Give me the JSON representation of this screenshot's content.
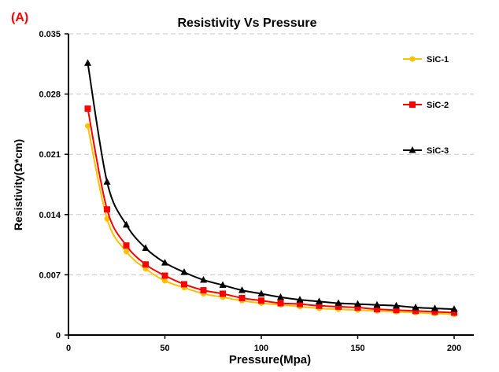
{
  "panel_label": "(A)",
  "chart_data": {
    "type": "line",
    "title": "Resistivity Vs Pressure",
    "xlabel": "Pressure(Mpa)",
    "ylabel": "Resistivity(Ω*cm)",
    "xlim": [
      0,
      200
    ],
    "ylim": [
      0,
      0.035
    ],
    "xticks": [
      "0",
      "50",
      "100",
      "150",
      "200"
    ],
    "yticks": [
      "0",
      "0.007",
      "0.014",
      "0.021",
      "0.028",
      "0.035"
    ],
    "grid": "horizontal dashed",
    "legend_position": "top-right",
    "x": [
      10,
      20,
      30,
      40,
      50,
      60,
      70,
      80,
      90,
      100,
      110,
      120,
      130,
      140,
      150,
      160,
      170,
      180,
      190,
      200
    ],
    "series": [
      {
        "name": "SiC-1",
        "color": "#FFC000",
        "marker": "circle",
        "values": [
          0.0243,
          0.0135,
          0.0097,
          0.0077,
          0.0063,
          0.0055,
          0.0048,
          0.0044,
          0.004,
          0.0037,
          0.0035,
          0.0033,
          0.0031,
          0.003,
          0.0029,
          0.0028,
          0.0027,
          0.0026,
          0.0025,
          0.0024
        ]
      },
      {
        "name": "SiC-2",
        "color": "#FF0000",
        "marker": "square",
        "values": [
          0.0263,
          0.0146,
          0.0104,
          0.0082,
          0.0069,
          0.0059,
          0.0052,
          0.0048,
          0.0043,
          0.004,
          0.0037,
          0.0036,
          0.0034,
          0.0033,
          0.0032,
          0.003,
          0.0029,
          0.0028,
          0.0027,
          0.0026
        ]
      },
      {
        "name": "SiC-3",
        "color": "#000000",
        "marker": "triangle",
        "values": [
          0.0316,
          0.0178,
          0.0128,
          0.0101,
          0.0084,
          0.0073,
          0.0064,
          0.0058,
          0.0052,
          0.0048,
          0.0044,
          0.0041,
          0.0039,
          0.0037,
          0.0036,
          0.0035,
          0.0034,
          0.0032,
          0.0031,
          0.003
        ]
      }
    ]
  }
}
